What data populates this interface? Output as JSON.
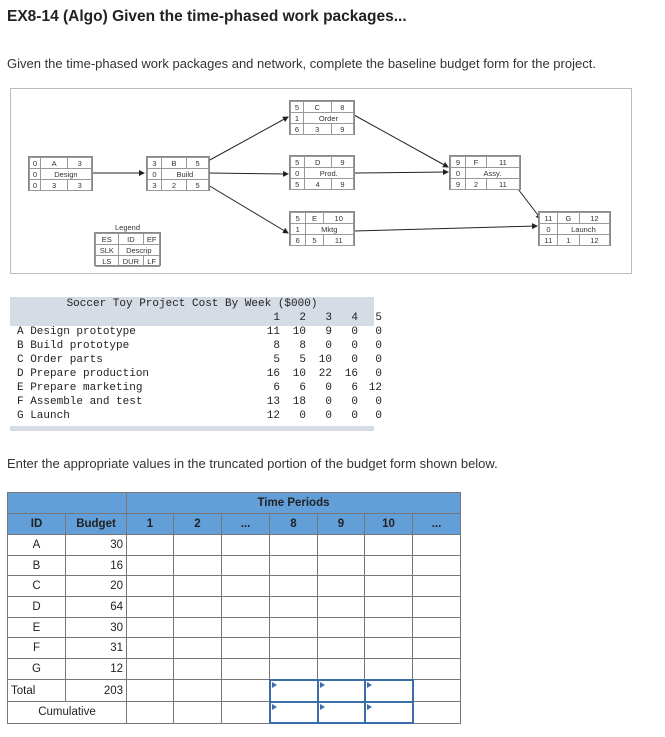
{
  "title": "EX8-14 (Algo) Given the time-phased work packages...",
  "intro": "Given the time-phased work packages and network, complete the baseline budget form for the project.",
  "network": {
    "nodes": {
      "A": {
        "es": "0",
        "id": "A",
        "ef": "3",
        "slk": "0",
        "desc": "Design",
        "ls": "0",
        "dur": "3",
        "lf": "3"
      },
      "B": {
        "es": "3",
        "id": "B",
        "ef": "5",
        "slk": "0",
        "desc": "Build",
        "ls": "3",
        "dur": "2",
        "lf": "5"
      },
      "C": {
        "es": "5",
        "id": "C",
        "ef": "8",
        "slk": "1",
        "desc": "Order",
        "ls": "6",
        "dur": "3",
        "lf": "9"
      },
      "D": {
        "es": "5",
        "id": "D",
        "ef": "9",
        "slk": "0",
        "desc": "Prod.",
        "ls": "5",
        "dur": "4",
        "lf": "9"
      },
      "E": {
        "es": "5",
        "id": "E",
        "ef": "10",
        "slk": "1",
        "desc": "Mktg",
        "ls": "6",
        "dur": "5",
        "lf": "11"
      },
      "F": {
        "es": "9",
        "id": "F",
        "ef": "11",
        "slk": "0",
        "desc": "Assy.",
        "ls": "9",
        "dur": "2",
        "lf": "11"
      },
      "G": {
        "es": "11",
        "id": "G",
        "ef": "12",
        "slk": "0",
        "desc": "Launch",
        "ls": "11",
        "dur": "1",
        "lf": "12"
      }
    },
    "legend": {
      "title": "Legend",
      "es": "ES",
      "id": "ID",
      "ef": "EF",
      "slk": "SLK",
      "desc": "Descrip",
      "ls": "LS",
      "dur": "DUR",
      "lf": "LF"
    }
  },
  "cost_table": {
    "title": "Soccer Toy Project Cost By Week ($000)",
    "weeks": [
      "1",
      "2",
      "3",
      "4",
      "5"
    ],
    "rows": [
      {
        "label": "A Design prototype",
        "values": [
          "11",
          "10",
          "9",
          "0",
          "0"
        ]
      },
      {
        "label": "B Build prototype",
        "values": [
          "8",
          "8",
          "0",
          "0",
          "0"
        ]
      },
      {
        "label": "C Order parts",
        "values": [
          "5",
          "5",
          "10",
          "0",
          "0"
        ]
      },
      {
        "label": "D Prepare production",
        "values": [
          "16",
          "10",
          "22",
          "16",
          "0"
        ]
      },
      {
        "label": "E Prepare marketing",
        "values": [
          "6",
          "6",
          "0",
          "6",
          "12"
        ]
      },
      {
        "label": "F Assemble and test",
        "values": [
          "13",
          "18",
          "0",
          "0",
          "0"
        ]
      },
      {
        "label": "G Launch",
        "values": [
          "12",
          "0",
          "0",
          "0",
          "0"
        ]
      }
    ]
  },
  "instruction": "Enter the appropriate values in the truncated portion of the budget form shown below.",
  "budget_form": {
    "group_header": "Time Periods",
    "id_header": "ID",
    "budget_header": "Budget",
    "periods": [
      "1",
      "2",
      "...",
      "8",
      "9",
      "10",
      "..."
    ],
    "rows": [
      {
        "id": "A",
        "budget": "30"
      },
      {
        "id": "B",
        "budget": "16"
      },
      {
        "id": "C",
        "budget": "20"
      },
      {
        "id": "D",
        "budget": "64"
      },
      {
        "id": "E",
        "budget": "30"
      },
      {
        "id": "F",
        "budget": "31"
      },
      {
        "id": "G",
        "budget": "12"
      }
    ],
    "total_label": "Total",
    "total_budget": "203",
    "cumulative_label": "Cumulative"
  },
  "colors": {
    "header_blue": "#629fd9",
    "input_border": "#3b6ea8",
    "cost_header": "#d6dce6"
  }
}
